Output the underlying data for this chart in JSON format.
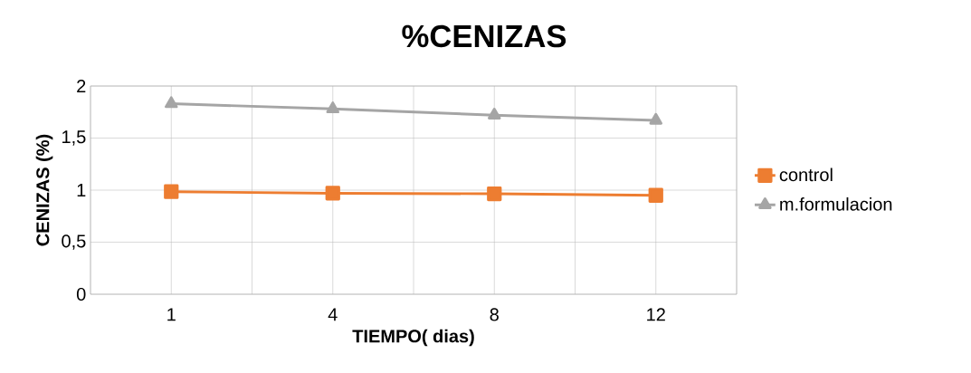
{
  "chart_data": {
    "type": "line",
    "title": "%CENIZAS",
    "xlabel": "TIEMPO( dias)",
    "ylabel": "CENIZAS (%)",
    "categories": [
      "1",
      "4",
      "8",
      "12"
    ],
    "series": [
      {
        "name": "control",
        "color": "#ed7d31",
        "marker": "square",
        "values": [
          0.985,
          0.97,
          0.965,
          0.95
        ]
      },
      {
        "name": "m.formulacion",
        "color": "#a5a5a5",
        "marker": "triangle",
        "values": [
          1.83,
          1.78,
          1.72,
          1.67
        ]
      }
    ],
    "ylim": [
      0,
      2
    ],
    "yticks": [
      0,
      {
        "value": 0.5,
        "label": "0,5"
      },
      1,
      {
        "value": 1.5,
        "label": "1,5"
      },
      2
    ],
    "grid": true,
    "legend": "right"
  }
}
